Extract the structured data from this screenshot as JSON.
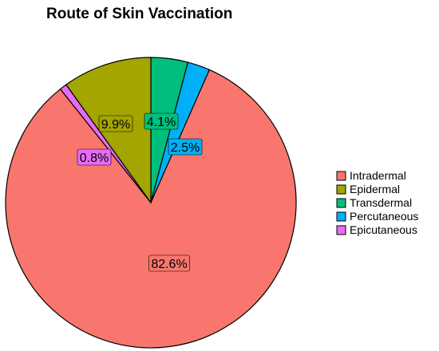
{
  "chart_data": {
    "type": "pie",
    "title": "Route of Skin Vaccination",
    "categories": [
      "Intradermal",
      "Epidermal",
      "Transdermal",
      "Percutaneous",
      "Epicutaneous"
    ],
    "values": [
      82.6,
      9.9,
      4.1,
      2.5,
      0.8
    ],
    "labels": [
      "82.6%",
      "9.9%",
      "4.1%",
      "2.5%",
      "0.8%"
    ],
    "colors": [
      "#F8766D",
      "#A3A500",
      "#00BF7D",
      "#00B0F6",
      "#E76BF3"
    ],
    "legend_position": "right",
    "start": "12 o'clock",
    "direction": "counterclockwise"
  }
}
